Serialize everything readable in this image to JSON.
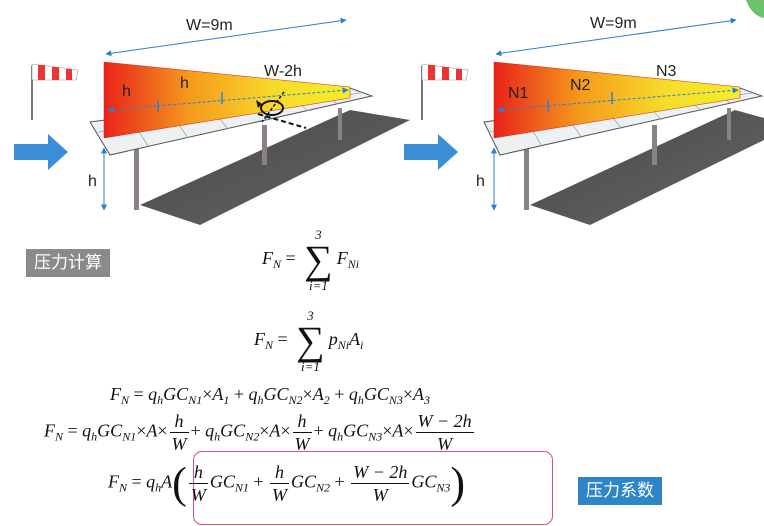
{
  "diagram_left": {
    "width_label": "W=9m",
    "zone_labels": [
      "h",
      "h",
      "W-2h"
    ],
    "height_label": "h"
  },
  "diagram_right": {
    "width_label": "W=9m",
    "zone_labels": [
      "N1",
      "N2",
      "N3"
    ],
    "height_label": "h"
  },
  "section_badge": "压力计算",
  "coef_badge": "压力系数",
  "equations": {
    "eq1": {
      "lhs": "F",
      "lhs_sub": "N",
      "sum_top": "3",
      "sum_bot": "i=1",
      "term": "F",
      "term_sub": "Ni"
    },
    "eq2": {
      "lhs": "F",
      "lhs_sub": "N",
      "sum_top": "3",
      "sum_bot": "i=1",
      "term_p": "p",
      "term_p_sub": "Ni",
      "term_a": "A",
      "term_a_sub": "i"
    },
    "eq3": "= q_h GC_N1 ×A_1 + q_h GC_N2 ×A_2 + q_h GC_N3 ×A_3",
    "frac_h_num": "h",
    "frac_h_den": "W",
    "frac_w_num": "W − 2h",
    "frac_w_den": "W"
  },
  "colors": {
    "zone_red": "#e8231b",
    "zone_orange": "#f59a1c",
    "zone_yellow": "#f6ee28",
    "arrow_blue": "#3a8fd8",
    "dimension_blue": "#2a7fd4",
    "highlight_box": "#d9536f"
  }
}
